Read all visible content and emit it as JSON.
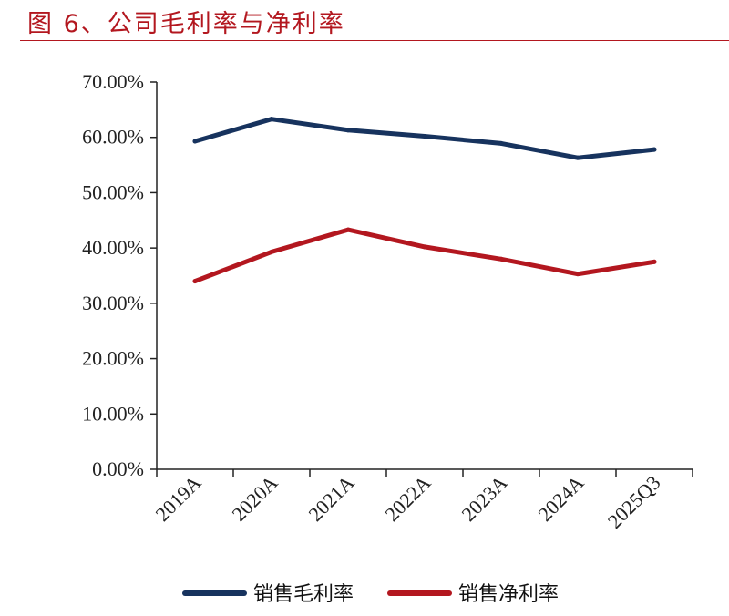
{
  "figure_title": "图 6、公司毛利率与净利率",
  "colors": {
    "accent": "#b3171f",
    "series_gross": "#17335e",
    "series_net": "#b3171f",
    "axis": "#222222"
  },
  "chart_data": {
    "type": "line",
    "categories": [
      "2019A",
      "2020A",
      "2021A",
      "2022A",
      "2023A",
      "2024A",
      "2025Q3"
    ],
    "series": [
      {
        "name": "销售毛利率",
        "values": [
          59.3,
          63.3,
          61.3,
          60.2,
          58.9,
          56.3,
          57.8
        ]
      },
      {
        "name": "销售净利率",
        "values": [
          34.0,
          39.3,
          43.3,
          40.2,
          38.0,
          35.3,
          37.5
        ]
      }
    ],
    "ylim": [
      0,
      70
    ],
    "yticks": [
      "0.00%",
      "10.00%",
      "20.00%",
      "30.00%",
      "40.00%",
      "50.00%",
      "60.00%",
      "70.00%"
    ],
    "grid": false,
    "legend_position": "bottom",
    "title": "",
    "xlabel": "",
    "ylabel": ""
  }
}
